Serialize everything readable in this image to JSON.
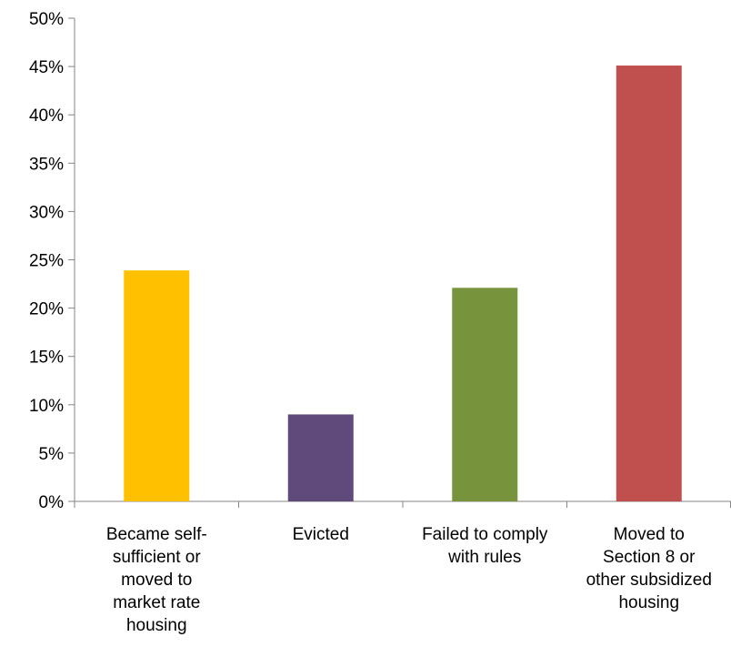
{
  "chart_data": {
    "type": "bar",
    "categories": [
      "Became self-sufficient or moved to market rate housing",
      "Evicted",
      "Failed to comply with rules",
      "Moved to Section 8 or other subsidized housing"
    ],
    "category_label_lines": [
      [
        "Became self-",
        "sufficient or",
        "moved to",
        "market rate",
        "housing"
      ],
      [
        "Evicted"
      ],
      [
        "Failed to comply",
        "with rules"
      ],
      [
        "Moved to",
        "Section 8 or",
        "other subsidized",
        "housing"
      ]
    ],
    "values": [
      23.9,
      9.0,
      22.1,
      45.1
    ],
    "value_unit": "%",
    "colors": [
      "#ffc000",
      "#604a7b",
      "#77933c",
      "#c0504d"
    ],
    "ylim": [
      0,
      50
    ],
    "yticks": [
      0,
      5,
      10,
      15,
      20,
      25,
      30,
      35,
      40,
      45,
      50
    ],
    "ytick_labels": [
      "0%",
      "5%",
      "10%",
      "15%",
      "20%",
      "25%",
      "30%",
      "35%",
      "40%",
      "45%",
      "50%"
    ],
    "grid": false,
    "legend": "none",
    "axis_color": "#868686",
    "title": "",
    "xlabel": "",
    "ylabel": ""
  }
}
